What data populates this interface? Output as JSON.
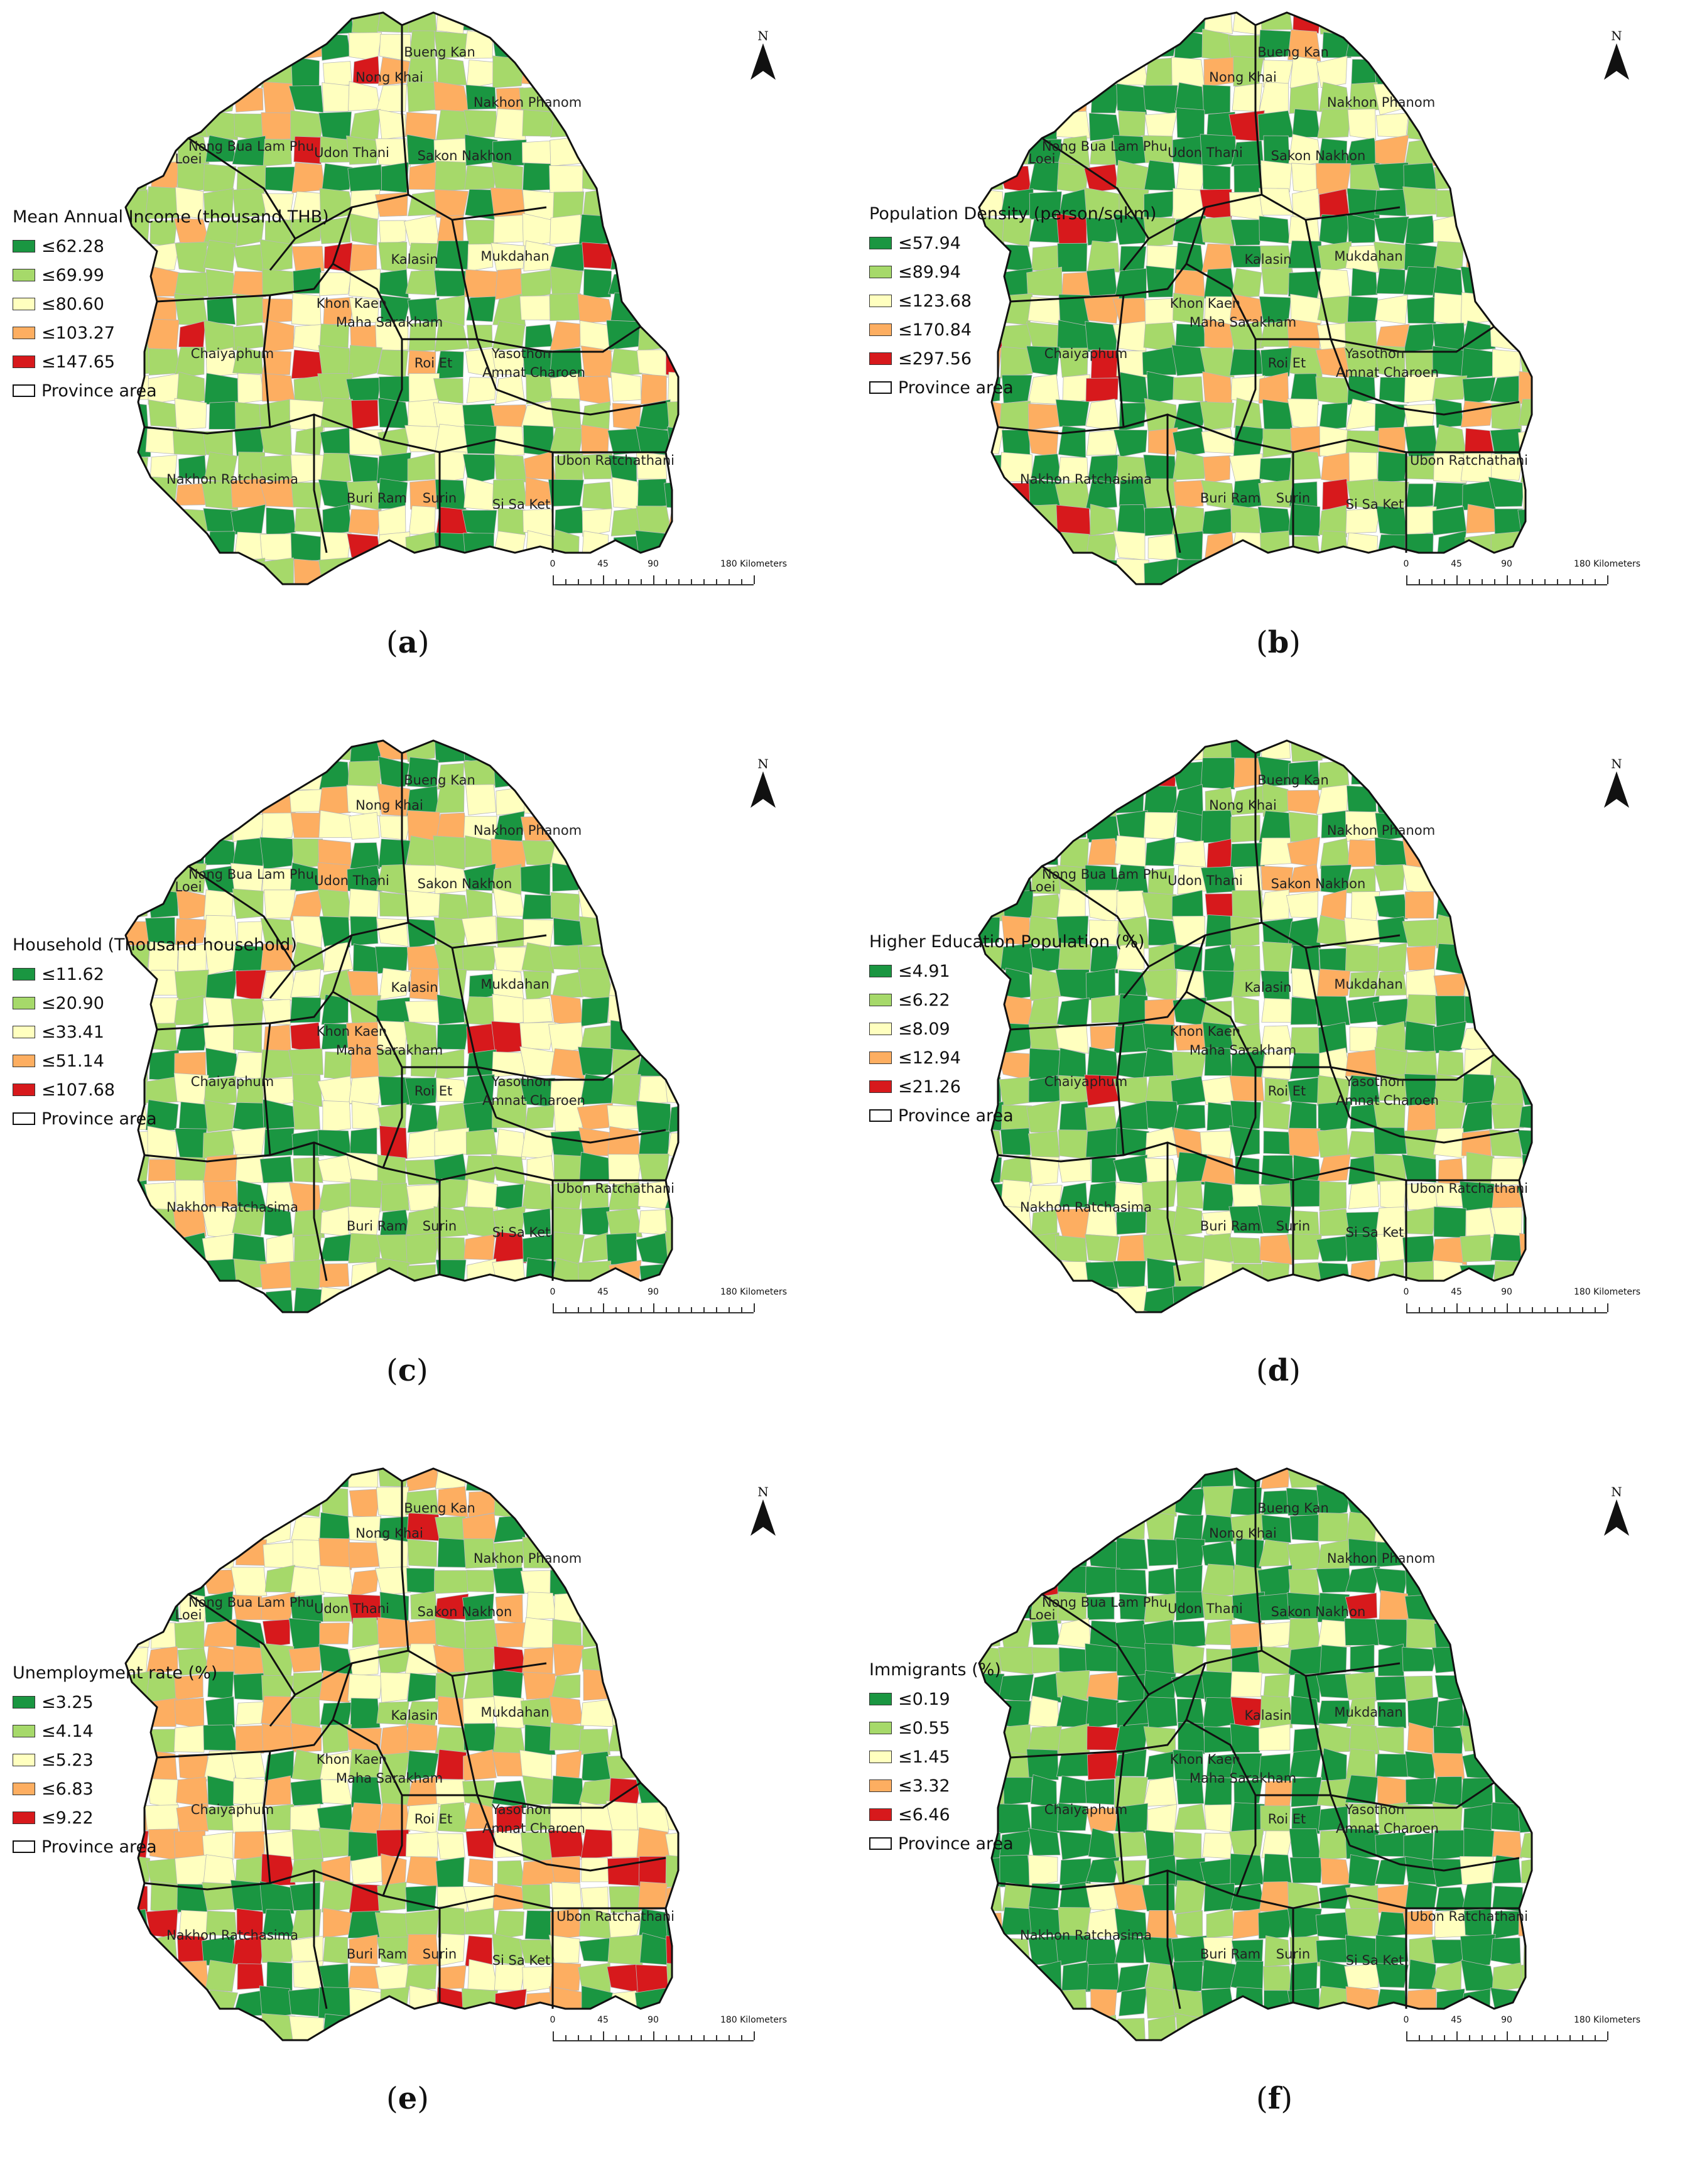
{
  "colors": {
    "c1": "#1a9641",
    "c2": "#a6d96a",
    "c3": "#ffffbf",
    "c4": "#fdae61",
    "c5": "#d7191c",
    "province_border": "#111111"
  },
  "north_label": "N",
  "scale": {
    "ticks": [
      "0",
      "45",
      "90",
      "180 Kilometers"
    ]
  },
  "province_labels": [
    "Bueng Kan",
    "Nong Khai",
    "Nakhon Phanom",
    "Loei",
    "Nong Bua Lam Phu",
    "Udon Thani",
    "Sakon Nakhon",
    "Kalasin",
    "Mukdahan",
    "Khon Kaen",
    "Maha Sarakham",
    "Chaiyaphum",
    "Roi Et",
    "Yasothon",
    "Amnat Charoen",
    "Nakhon Ratchasima",
    "Buri Ram",
    "Surin",
    "Si Sa Ket",
    "Ubon Ratchathani"
  ],
  "panels": [
    {
      "caption": "a",
      "legend_title": "Mean Annual Income (thousand THB)",
      "classes": [
        "≤62.28",
        "≤69.99",
        "≤80.60",
        "≤103.27",
        "≤147.65"
      ],
      "province_area_label": "Province area"
    },
    {
      "caption": "b",
      "legend_title": "Population Density (person/sqkm)",
      "classes": [
        "≤57.94",
        "≤89.94",
        "≤123.68",
        "≤170.84",
        "≤297.56"
      ],
      "province_area_label": "Province area"
    },
    {
      "caption": "c",
      "legend_title": "Household (Thousand household)",
      "classes": [
        "≤11.62",
        "≤20.90",
        "≤33.41",
        "≤51.14",
        "≤107.68"
      ],
      "province_area_label": "Province area"
    },
    {
      "caption": "d",
      "legend_title": "Higher Education Population (%)",
      "classes": [
        "≤4.91",
        "≤6.22",
        "≤8.09",
        "≤12.94",
        "≤21.26"
      ],
      "province_area_label": "Province area"
    },
    {
      "caption": "e",
      "legend_title": "Unemployment rate (%)",
      "classes": [
        "≤3.25",
        "≤4.14",
        "≤5.23",
        "≤6.83",
        "≤9.22"
      ],
      "province_area_label": "Province area"
    },
    {
      "caption": "f",
      "legend_title": "Immigrants (%)",
      "classes": [
        "≤0.19",
        "≤0.55",
        "≤1.45",
        "≤3.32",
        "≤6.46"
      ],
      "province_area_label": "Province area"
    }
  ]
}
